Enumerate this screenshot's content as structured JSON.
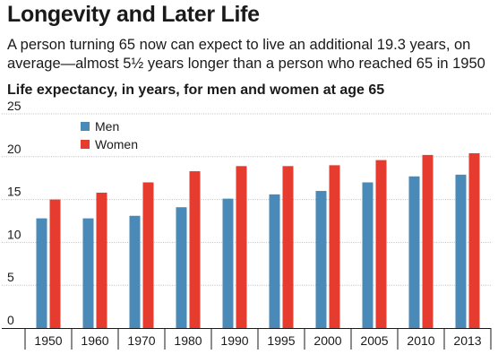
{
  "header": {
    "title": "Longevity and Later Life",
    "subtitle_line1": "A person turning 65 now can expect to live an additional 19.3 years, on",
    "subtitle_line2": "average—almost 5½ years longer than a person who reached 65 in 1950"
  },
  "chart_data": {
    "type": "bar",
    "title": "Life expectancy, in years, for men and women at age 65",
    "categories": [
      "1950",
      "1960",
      "1970",
      "1980",
      "1990",
      "1995",
      "2000",
      "2005",
      "2010",
      "2013"
    ],
    "series": [
      {
        "name": "Men",
        "color": "#4a8ab8",
        "values": [
          12.8,
          12.8,
          13.1,
          14.1,
          15.1,
          15.6,
          16.0,
          17.0,
          17.7,
          17.9
        ]
      },
      {
        "name": "Women",
        "color": "#e63c2f",
        "values": [
          15.0,
          15.8,
          17.0,
          18.3,
          18.9,
          18.9,
          19.0,
          19.6,
          20.2,
          20.4
        ]
      }
    ],
    "yticks": [
      0,
      5,
      10,
      15,
      20,
      25
    ],
    "ylim": [
      0,
      25
    ],
    "grid": true,
    "legend_position": "top-left"
  }
}
